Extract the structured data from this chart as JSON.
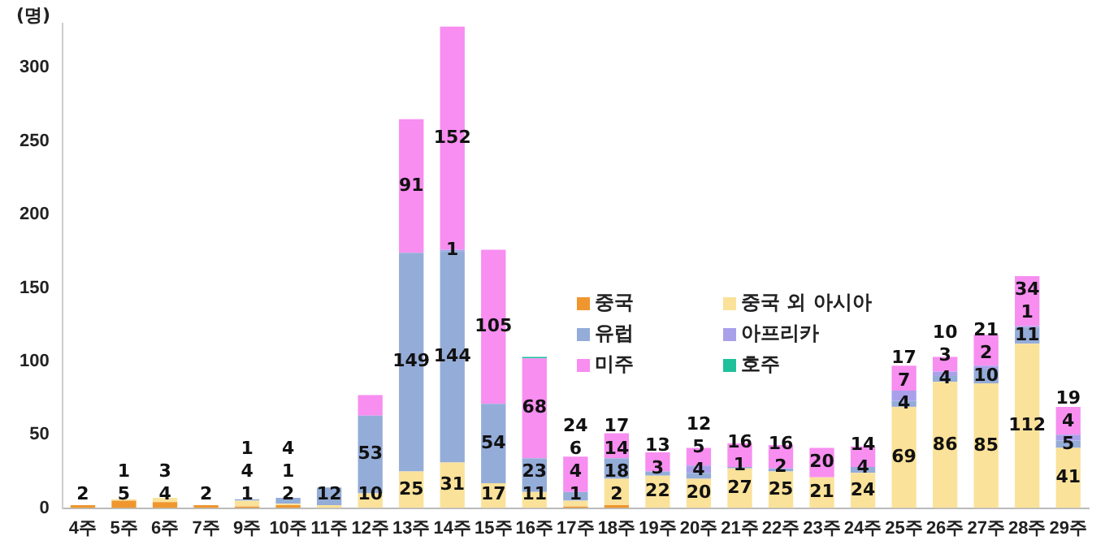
{
  "chart_data": {
    "type": "bar",
    "stacked": true,
    "ylabel": "(명)",
    "categories": [
      "4주",
      "5주",
      "6주",
      "7주",
      "9주",
      "10주",
      "11주",
      "12주",
      "13주",
      "14주",
      "15주",
      "16주",
      "17주",
      "18주",
      "19주",
      "20주",
      "21주",
      "22주",
      "23주",
      "24주",
      "25주",
      "26주",
      "27주",
      "28주",
      "29주"
    ],
    "ylim": [
      0,
      330
    ],
    "yticks": [
      0,
      50,
      100,
      150,
      200,
      250,
      300
    ],
    "grid": false,
    "legend": "center",
    "series": [
      {
        "name": "중국",
        "color": "#f0962e",
        "values": [
          2,
          5,
          4,
          2,
          1,
          2,
          null,
          null,
          null,
          null,
          null,
          null,
          1,
          2,
          null,
          null,
          null,
          null,
          null,
          null,
          null,
          null,
          null,
          null,
          null
        ],
        "value_labels": [
          "2",
          "5",
          "4",
          "2",
          "1",
          "2",
          null,
          null,
          null,
          null,
          null,
          null,
          "1",
          "2",
          null,
          null,
          null,
          null,
          null,
          null,
          null,
          null,
          null,
          null,
          null
        ]
      },
      {
        "name": "중국 외 아시아",
        "color": "#fbe29a",
        "values": [
          null,
          1,
          3,
          null,
          4,
          1,
          2,
          10,
          25,
          31,
          17,
          11,
          4,
          18,
          22,
          20,
          27,
          25,
          21,
          24,
          69,
          86,
          85,
          112,
          41
        ],
        "value_labels": [
          null,
          "1",
          "3",
          null,
          "4",
          "1",
          null,
          "10",
          "25",
          "31",
          "17",
          "11",
          "4",
          "18",
          "22",
          "20",
          "27",
          "25",
          "21",
          "24",
          "69",
          "86",
          "85",
          "112",
          "41"
        ]
      },
      {
        "name": "유럽",
        "color": "#94acd8",
        "values": [
          null,
          null,
          null,
          null,
          1,
          4,
          12,
          53,
          149,
          144,
          54,
          23,
          6,
          14,
          3,
          4,
          1,
          2,
          null,
          4,
          4,
          4,
          10,
          11,
          5
        ],
        "value_labels": [
          null,
          null,
          null,
          null,
          "1",
          "4",
          "12",
          "53",
          "149",
          "144",
          "54",
          "23",
          "6",
          "14",
          "3",
          "4",
          "1",
          "2",
          null,
          "4",
          "4",
          "4",
          "10",
          "11",
          "5"
        ]
      },
      {
        "name": "아프리카",
        "color": "#a9a0ea",
        "values": [
          null,
          null,
          null,
          null,
          null,
          null,
          null,
          null,
          null,
          1,
          null,
          null,
          null,
          null,
          null,
          5,
          null,
          null,
          null,
          null,
          7,
          3,
          2,
          1,
          4
        ],
        "value_labels": [
          null,
          null,
          null,
          null,
          null,
          null,
          null,
          null,
          null,
          "1",
          null,
          null,
          null,
          null,
          null,
          "5",
          null,
          null,
          null,
          null,
          "7",
          "3",
          "2",
          "1",
          "4"
        ]
      },
      {
        "name": "미주",
        "color": "#f78ef0",
        "values": [
          null,
          null,
          null,
          null,
          null,
          null,
          null,
          14,
          91,
          152,
          105,
          68,
          24,
          17,
          13,
          12,
          16,
          16,
          20,
          14,
          17,
          10,
          21,
          34,
          19
        ],
        "value_labels": [
          null,
          null,
          null,
          null,
          null,
          null,
          null,
          null,
          "91",
          "152",
          "105",
          "68",
          "24",
          "17",
          "13",
          "12",
          "16",
          "16",
          "20",
          "14",
          "17",
          "10",
          "21",
          "34",
          "19"
        ]
      },
      {
        "name": "호주",
        "color": "#1fc19a",
        "values": [
          null,
          null,
          null,
          null,
          null,
          null,
          null,
          null,
          null,
          null,
          null,
          1,
          null,
          null,
          null,
          null,
          null,
          null,
          null,
          null,
          null,
          null,
          null,
          null,
          null
        ],
        "value_labels": [
          null,
          null,
          null,
          null,
          null,
          null,
          null,
          null,
          null,
          null,
          null,
          null,
          null,
          null,
          null,
          null,
          null,
          null,
          null,
          null,
          null,
          null,
          null,
          null,
          null
        ]
      }
    ]
  }
}
